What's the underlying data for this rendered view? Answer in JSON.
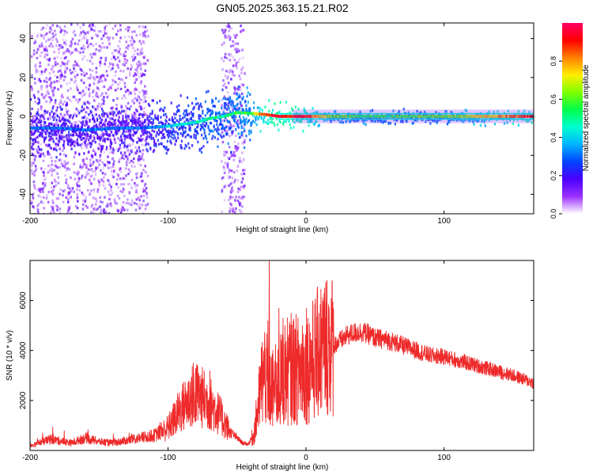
{
  "title": "GN05.2025.363.15.21.R02",
  "chart_data": [
    {
      "type": "heatmap",
      "title": "GN05.2025.363.15.21.R02",
      "xlabel": "Height of straight line (km)",
      "ylabel": "Frequency (Hz)",
      "xlim": [
        -200,
        165
      ],
      "ylim": [
        -50,
        48
      ],
      "xticks": [
        -200,
        -100,
        0,
        100
      ],
      "yticks": [
        -40,
        -20,
        0,
        20,
        40
      ],
      "colorbar": {
        "label": "Normalized spectral amplitude",
        "range": [
          0,
          1
        ],
        "ticks": [
          0.0,
          0.2,
          0.4,
          0.6,
          0.8
        ],
        "colors": [
          "#ffffff",
          "#9b30ff",
          "#4b00ff",
          "#0044ff",
          "#00b4ff",
          "#00ffd0",
          "#00ff4c",
          "#7dff00",
          "#ffee00",
          "#ff8000",
          "#ff0000",
          "#ff0066"
        ]
      },
      "ridge": {
        "x": [
          -200,
          -180,
          -160,
          -140,
          -120,
          -100,
          -80,
          -70,
          -60,
          -50,
          -40,
          -30,
          -20,
          0,
          20,
          50,
          100,
          165
        ],
        "y": [
          -6,
          -6,
          -7,
          -6,
          -6,
          -5,
          -3,
          -1,
          0,
          2,
          1.5,
          1,
          0,
          0,
          0,
          0,
          0,
          0
        ],
        "amplitude": [
          0.3,
          0.3,
          0.3,
          0.3,
          0.3,
          0.4,
          0.45,
          0.5,
          0.5,
          0.55,
          0.6,
          0.9,
          0.95,
          0.9,
          0.6,
          0.55,
          0.6,
          0.9
        ]
      },
      "noise_bands": [
        {
          "from": -200,
          "to": -115,
          "amplitude": 0.08
        },
        {
          "from": -62,
          "to": -45,
          "amplitude": 0.08
        }
      ]
    },
    {
      "type": "line",
      "xlabel": "Height of straight line (km)",
      "ylabel": "SNR (10 * v/v)",
      "xlim": [
        -200,
        165
      ],
      "ylim": [
        0,
        7600
      ],
      "xticks": [
        -200,
        -100,
        0,
        100
      ],
      "yticks": [
        2000,
        4000,
        6000
      ],
      "color": "#ee2a2a",
      "series": [
        {
          "name": "SNR",
          "x": [
            -200,
            -185,
            -170,
            -160,
            -150,
            -140,
            -130,
            -120,
            -110,
            -100,
            -95,
            -90,
            -85,
            -80,
            -75,
            -70,
            -65,
            -60,
            -55,
            -50,
            -46,
            -42,
            -38,
            -35,
            -32,
            -30,
            -28,
            -25,
            -20,
            -15,
            -10,
            -5,
            0,
            5,
            10,
            15,
            20,
            25,
            30,
            35,
            40,
            45,
            50,
            60,
            70,
            80,
            90,
            100,
            110,
            120,
            130,
            140,
            150,
            160,
            165
          ],
          "y": [
            200,
            450,
            300,
            500,
            350,
            300,
            400,
            500,
            600,
            900,
            1300,
            1700,
            2000,
            2300,
            2100,
            1900,
            1600,
            1200,
            750,
            500,
            300,
            250,
            600,
            1600,
            2800,
            3100,
            2600,
            2400,
            2600,
            3100,
            3300,
            3200,
            3300,
            3600,
            4000,
            4300,
            4200,
            4400,
            4600,
            4700,
            4750,
            4650,
            4500,
            4400,
            4200,
            4000,
            3800,
            3750,
            3600,
            3450,
            3300,
            3150,
            3000,
            2800,
            2700
          ],
          "spikes": [
            {
              "x": -27,
              "y": 7600
            },
            {
              "x": -28,
              "y": 5200
            },
            {
              "x": -20,
              "y": 5700
            },
            {
              "x": -17,
              "y": 5300
            },
            {
              "x": -3,
              "y": 5000
            },
            {
              "x": 0,
              "y": 5700
            },
            {
              "x": 14,
              "y": 6100
            },
            {
              "x": 9,
              "y": 5500
            },
            {
              "x": -80,
              "y": 3300
            },
            {
              "x": -70,
              "y": 3200
            },
            {
              "x": -82,
              "y": 3500
            }
          ]
        }
      ]
    }
  ]
}
